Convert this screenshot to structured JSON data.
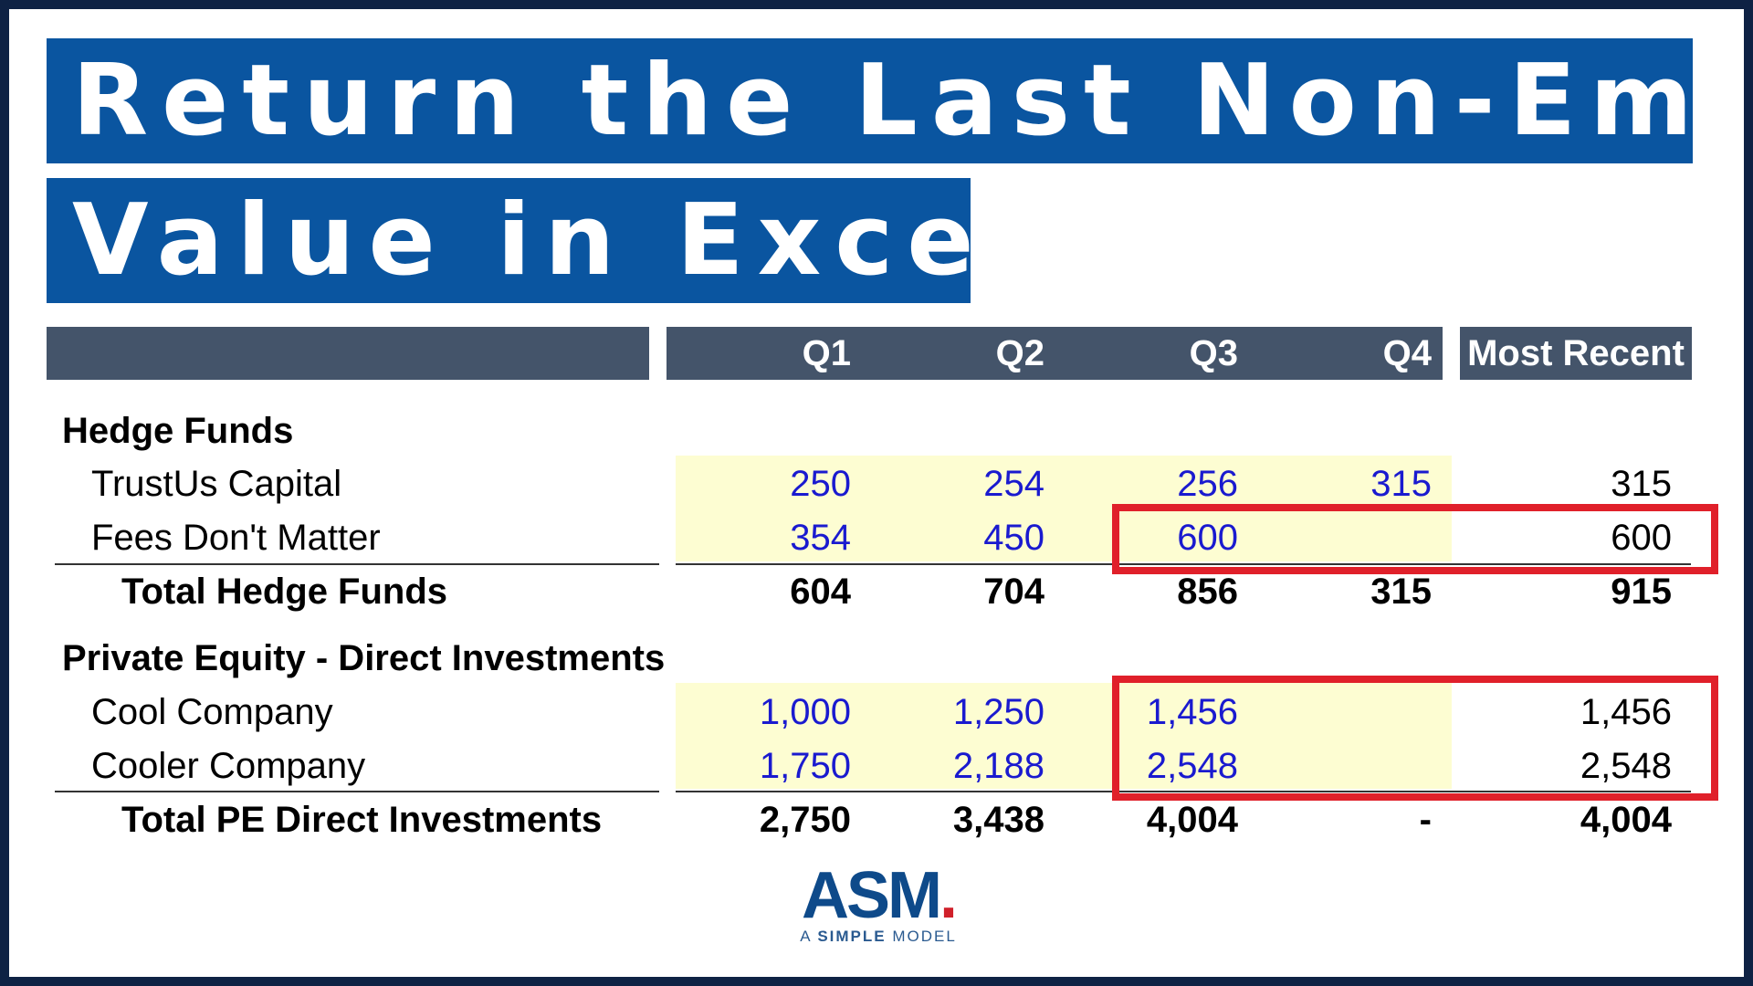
{
  "title": {
    "line1": "Return the Last Non-Empty",
    "line2": "Value in Excel"
  },
  "header": {
    "quarters": [
      "Q1",
      "Q2",
      "Q3",
      "Q4"
    ],
    "most_recent": "Most Recent"
  },
  "sections": [
    {
      "heading": "Hedge Funds",
      "rows": [
        {
          "label": "TrustUs Capital",
          "values": [
            "250",
            "254",
            "256",
            "315"
          ],
          "recent": "315"
        },
        {
          "label": "Fees Don't Matter",
          "values": [
            "354",
            "450",
            "600",
            ""
          ],
          "recent": "600"
        }
      ],
      "total": {
        "label": "Total Hedge Funds",
        "values": [
          "604",
          "704",
          "856",
          "315"
        ],
        "recent": "915"
      }
    },
    {
      "heading": "Private Equity - Direct Investments",
      "rows": [
        {
          "label": "Cool Company",
          "values": [
            "1,000",
            "1,250",
            "1,456",
            ""
          ],
          "recent": "1,456"
        },
        {
          "label": "Cooler Company",
          "values": [
            "1,750",
            "2,188",
            "2,548",
            ""
          ],
          "recent": "2,548"
        }
      ],
      "total": {
        "label": "Total PE Direct Investments",
        "values": [
          "2,750",
          "3,438",
          "4,004",
          "-"
        ],
        "recent": "4,004"
      }
    }
  ],
  "logo": {
    "main": "ASM",
    "dot": ".",
    "sub_a": "A ",
    "sub_b": "SIMPLE",
    "sub_c": " MODEL"
  },
  "colors": {
    "title_bg": "#0a55a0",
    "header_bg": "#44546a",
    "input_blue": "#1a1acf",
    "input_fill": "#fdfdd2",
    "highlight_red": "#e0202a"
  }
}
